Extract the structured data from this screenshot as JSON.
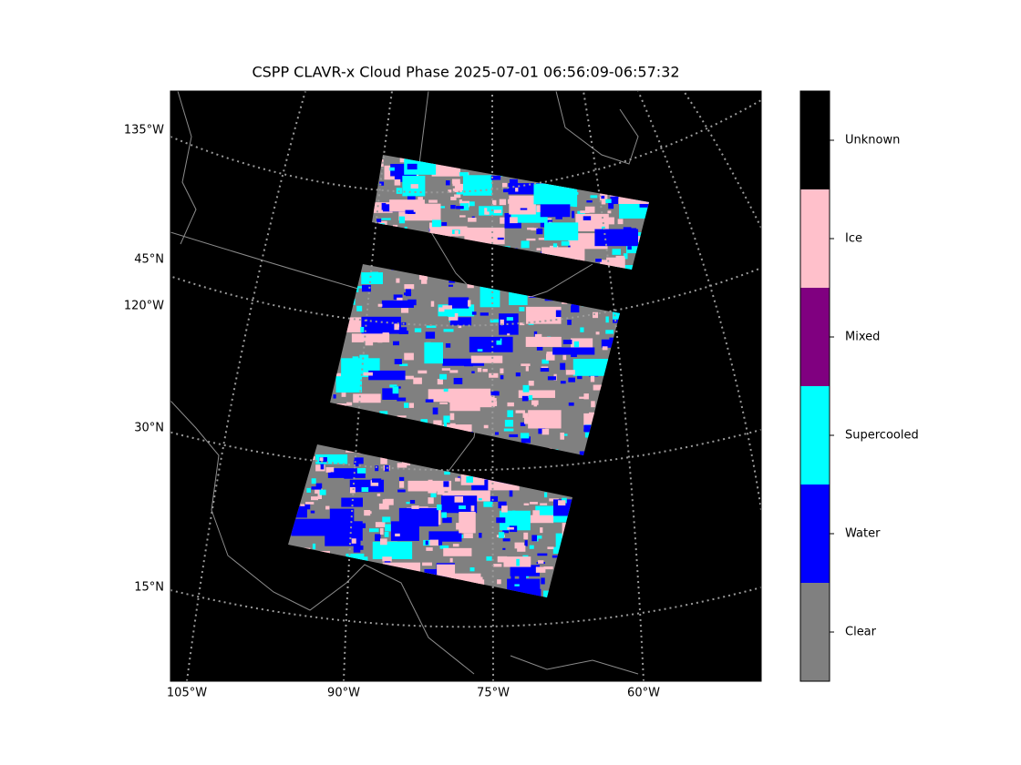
{
  "title": "CSPP CLAVR-x Cloud Phase 2025-07-01 06:56:09-06:57:32",
  "left_labels": [
    "135°W",
    "45°N",
    "120°W",
    "30°N",
    "15°N"
  ],
  "bottom_labels": [
    "105°W",
    "90°W",
    "75°W",
    "60°W"
  ],
  "colorbar": [
    {
      "label": "Unknown",
      "color": "#000000"
    },
    {
      "label": "Ice",
      "color": "#ffc0cb"
    },
    {
      "label": "Mixed",
      "color": "#800080"
    },
    {
      "label": "Supercooled",
      "color": "#00ffff"
    },
    {
      "label": "Water",
      "color": "#0000ff"
    },
    {
      "label": "Clear",
      "color": "#808080"
    }
  ]
}
